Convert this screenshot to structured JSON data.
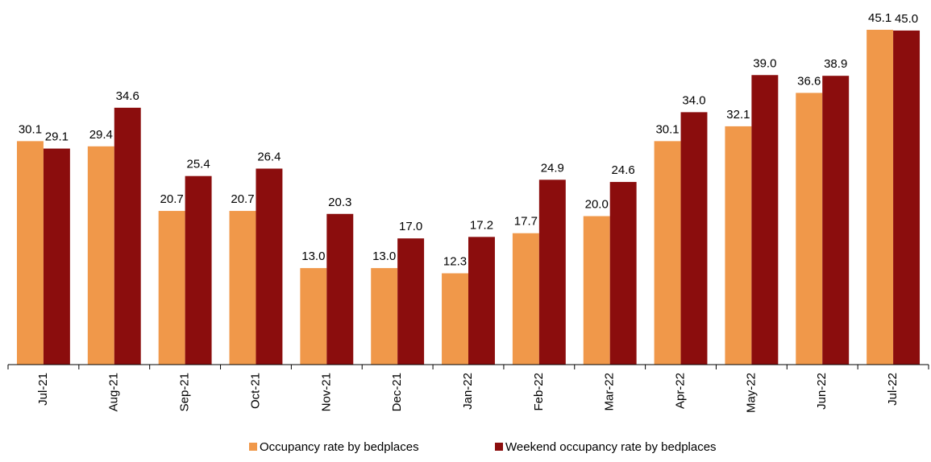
{
  "chart_data": {
    "type": "bar",
    "categories": [
      "Jul-21",
      "Aug-21",
      "Sep-21",
      "Oct-21",
      "Nov-21",
      "Dec-21",
      "Jan-22",
      "Feb-22",
      "Mar-22",
      "Apr-22",
      "May-22",
      "Jun-22",
      "Jul-22"
    ],
    "series": [
      {
        "name": "Occupancy rate by bedplaces",
        "color": "#F0984A",
        "values": [
          30.1,
          29.4,
          20.7,
          20.7,
          13.0,
          13.0,
          12.3,
          17.7,
          20.0,
          30.1,
          32.1,
          36.6,
          45.1
        ],
        "value_labels": [
          "30.1",
          "29.4",
          "20.7",
          "20.7",
          "13.0",
          "13.0",
          "12.3",
          "17.7",
          "20.0",
          "30.1",
          "32.1",
          "36.6",
          "45.1"
        ]
      },
      {
        "name": "Weekend occupancy rate by bedplaces",
        "color": "#8B0D0D",
        "values": [
          29.1,
          34.6,
          25.4,
          26.4,
          20.3,
          17.0,
          17.2,
          24.9,
          24.6,
          34.0,
          39.0,
          38.9,
          45.0
        ],
        "value_labels": [
          "29.1",
          "34.6",
          "25.4",
          "26.4",
          "20.3",
          "17.0",
          "17.2",
          "24.9",
          "24.6",
          "34.0",
          "39.0",
          "38.9",
          "45.0"
        ]
      }
    ],
    "legend": "bottom"
  }
}
